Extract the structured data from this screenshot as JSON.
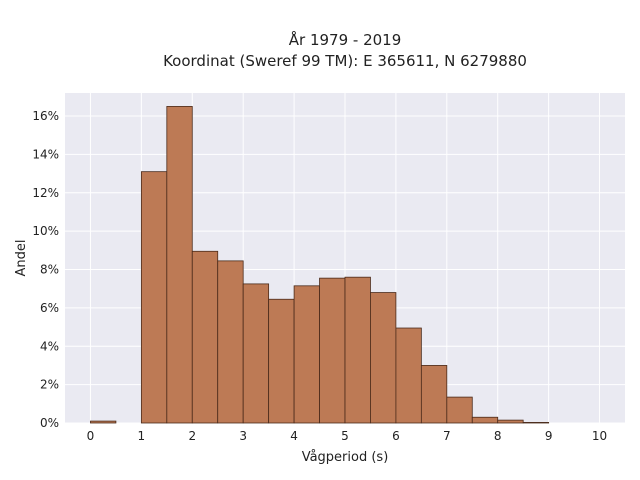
{
  "chart_data": {
    "type": "bar",
    "title_line1": "År 1979 - 2019",
    "title_line2": "Koordinat (Sweref 99 TM): E 365611, N 6279880",
    "xlabel": "Vågperiod (s)",
    "ylabel": "Andel",
    "bin_width": 0.5,
    "bins": [
      {
        "start": 0.0,
        "value": 0.1
      },
      {
        "start": 0.5,
        "value": 0.0
      },
      {
        "start": 1.0,
        "value": 13.1
      },
      {
        "start": 1.5,
        "value": 16.5
      },
      {
        "start": 2.0,
        "value": 8.95
      },
      {
        "start": 2.5,
        "value": 8.45
      },
      {
        "start": 3.0,
        "value": 7.25
      },
      {
        "start": 3.5,
        "value": 6.45
      },
      {
        "start": 4.0,
        "value": 7.15
      },
      {
        "start": 4.5,
        "value": 7.55
      },
      {
        "start": 5.0,
        "value": 7.6
      },
      {
        "start": 5.5,
        "value": 6.8
      },
      {
        "start": 6.0,
        "value": 4.95
      },
      {
        "start": 6.5,
        "value": 3.0
      },
      {
        "start": 7.0,
        "value": 1.35
      },
      {
        "start": 7.5,
        "value": 0.3
      },
      {
        "start": 8.0,
        "value": 0.15
      },
      {
        "start": 8.5,
        "value": 0.03
      }
    ],
    "xlim": [
      -0.5,
      10.5
    ],
    "ylim": [
      0,
      17.2
    ],
    "xticks": [
      0,
      1,
      2,
      3,
      4,
      5,
      6,
      7,
      8,
      9,
      10
    ],
    "yticks": [
      0,
      2,
      4,
      6,
      8,
      10,
      12,
      14,
      16
    ],
    "ytick_labels": [
      "0%",
      "2%",
      "4%",
      "6%",
      "8%",
      "10%",
      "12%",
      "14%",
      "16%"
    ],
    "grid": true,
    "colors": {
      "bar_fill": "#bd7a55",
      "bar_edge": "#4a2a1a",
      "plot_background": "#eaeaf2",
      "grid": "#ffffff"
    }
  }
}
